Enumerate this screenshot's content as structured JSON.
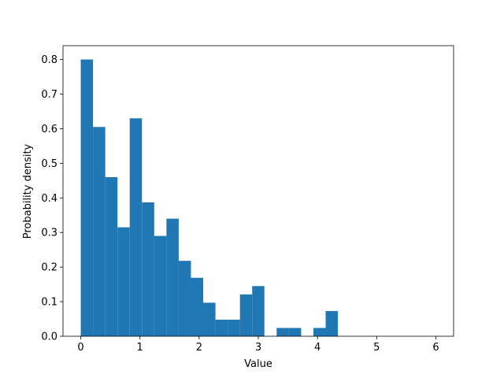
{
  "chart_data": {
    "type": "histogram",
    "xlabel": "Value",
    "ylabel": "Probability density",
    "bins": [
      0,
      0.207,
      0.414,
      0.621,
      0.828,
      1.034,
      1.241,
      1.448,
      1.655,
      1.862,
      2.069,
      2.276,
      2.483,
      2.69,
      2.897,
      3.103,
      3.31,
      3.517,
      3.724,
      3.931,
      4.138,
      4.345,
      4.552,
      4.759,
      4.966,
      5.172,
      5.379,
      5.586,
      5.793,
      6
    ],
    "values": [
      0.8,
      0.605,
      0.46,
      0.315,
      0.63,
      0.387,
      0.29,
      0.34,
      0.218,
      0.169,
      0.097,
      0.048,
      0.048,
      0.121,
      0.145,
      0,
      0.024,
      0.024,
      0,
      0.024,
      0.073,
      0,
      0,
      0,
      0,
      0,
      0,
      0,
      0
    ],
    "color": "#1f77b4",
    "xlim": [
      -0.3,
      6.3
    ],
    "ylim": [
      0,
      0.84
    ],
    "xticks": [
      0,
      1,
      2,
      3,
      4,
      5,
      6
    ],
    "yticks": [
      {
        "value": 0,
        "label": "0.0"
      },
      0.1,
      0.2,
      0.3,
      0.4,
      0.5,
      0.6,
      0.7,
      0.8
    ]
  }
}
